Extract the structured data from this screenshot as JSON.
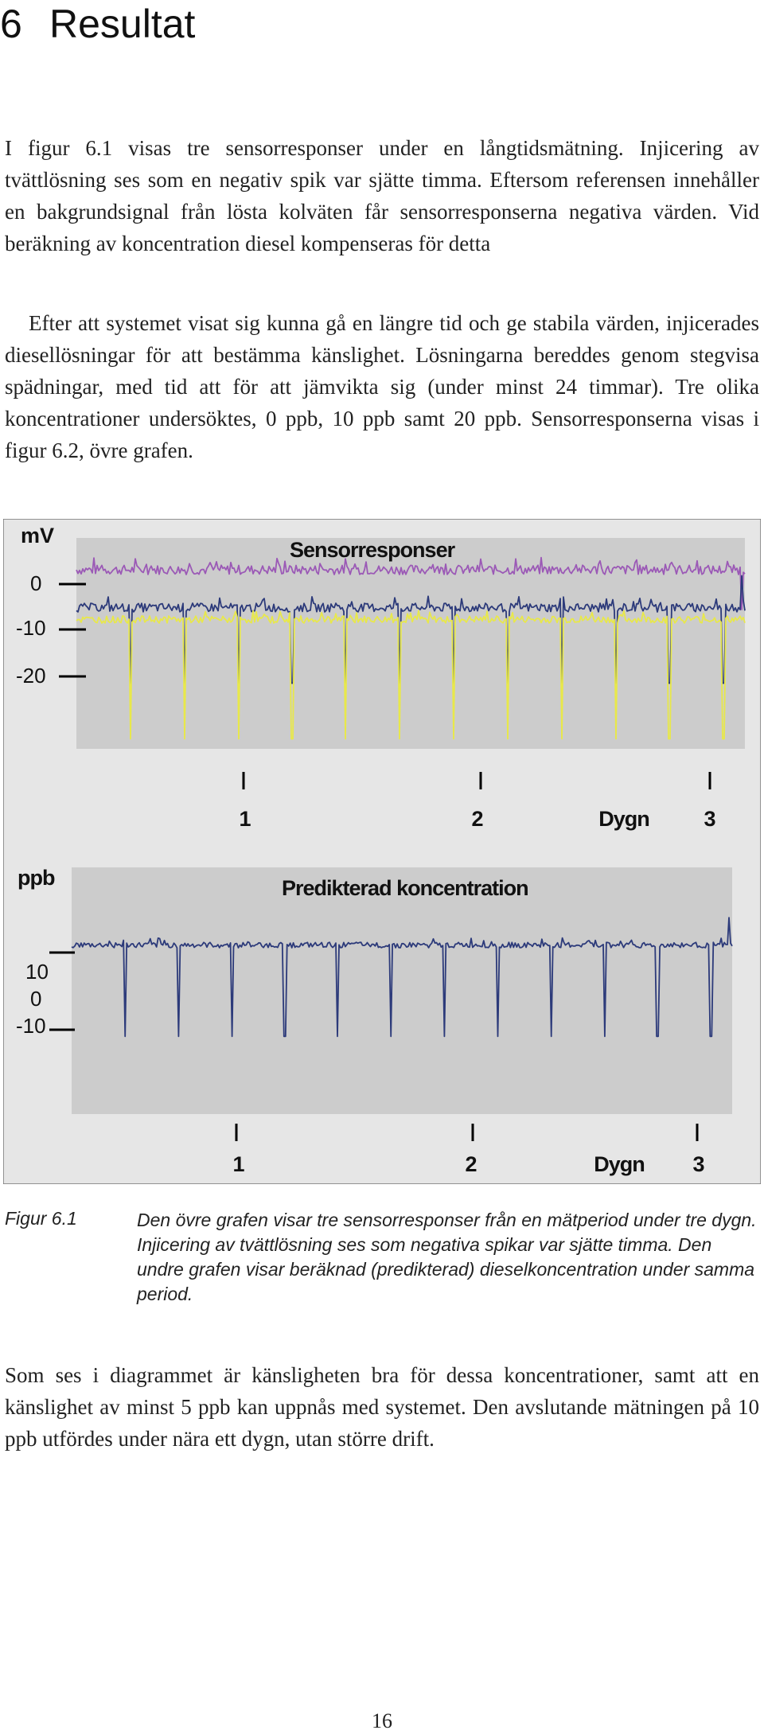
{
  "heading": {
    "number": "6",
    "title": "Resultat"
  },
  "paragraphs": {
    "p1": "I figur 6.1 visas tre sensorresponser under en långtidsmätning. Injicering av tvättlösning ses som en negativ spik var sjätte timma. Eftersom referensen innehåller en bakgrundsignal från lösta kolväten får sensorresponserna negativa värden. Vid beräkning av koncentration diesel kompenseras för detta",
    "p2": "Efter att systemet visat sig kunna gå en längre tid och ge stabila värden, injicerades diesellösningar för att bestämma känslighet. Lösningarna bereddes genom stegvisa spädningar, med tid att för att jämvikta sig (under minst 24 timmar). Tre olika koncentrationer undersöktes, 0 ppb, 10 ppb samt 20 ppb. Sensorresponserna visas i figur 6.2, övre grafen.",
    "p3": "Som ses i diagrammet är känsligheten bra för dessa koncentrationer, samt att en känslighet av minst 5 ppb kan uppnås med systemet. Den avslutande mätningen på 10 ppb utfördes under nära ett dygn, utan större drift."
  },
  "figure": {
    "label": "Figur 6.1",
    "caption": "Den övre grafen visar tre sensorresponser från en mätperiod under tre dygn. Injicering av tvättlösning ses som negativa spikar var sjätte timma. Den undre grafen visar beräknad (predikterad) dieselkoncentration under samma period."
  },
  "chart_data": [
    {
      "type": "line",
      "title": "Sensorresponser",
      "ylabel": "mV",
      "y_ticks": [
        "0",
        "-10",
        "-20"
      ],
      "x_ticks": [
        "1",
        "2",
        "3"
      ],
      "xlabel": "Dygn",
      "x_range": [
        0,
        3.1
      ],
      "ylim": [
        -45,
        8
      ],
      "spike_times_h": [
        6,
        12,
        18,
        24,
        30,
        36,
        42,
        48,
        54,
        60,
        66,
        72
      ],
      "series": [
        {
          "color": "#9b59b6",
          "baseline": 0,
          "noise": 1.2,
          "spike_depth": 0,
          "late_spike": -10
        },
        {
          "color": "#2c3a7a",
          "baseline": -9.5,
          "noise": 1.1,
          "spike_depth": -19,
          "late_spike": 8
        },
        {
          "color": "#e8e84a",
          "baseline": -12.5,
          "noise": 0.9,
          "spike_depth": -30,
          "late_spike": 0
        }
      ]
    },
    {
      "type": "line",
      "title": "Predikterad koncentration",
      "ylabel": "ppb",
      "y_ticks": [
        "10",
        "0",
        "-10"
      ],
      "x_ticks": [
        "1",
        "2",
        "3"
      ],
      "xlabel": "Dygn",
      "x_range": [
        0,
        3.1
      ],
      "ylim": [
        -38,
        16
      ],
      "spike_times_h": [
        6,
        12,
        18,
        24,
        30,
        36,
        42,
        48,
        54,
        60,
        66,
        72
      ],
      "series": [
        {
          "color": "#2c3a7a",
          "baseline": -1,
          "noise": 0.6,
          "spike_depth": -20,
          "late_spike": 6
        }
      ]
    }
  ],
  "colors": {
    "plot_bg": "#cccccc",
    "frame_bg": "#e6e6e6",
    "axis": "#000000"
  },
  "page_number": "16"
}
